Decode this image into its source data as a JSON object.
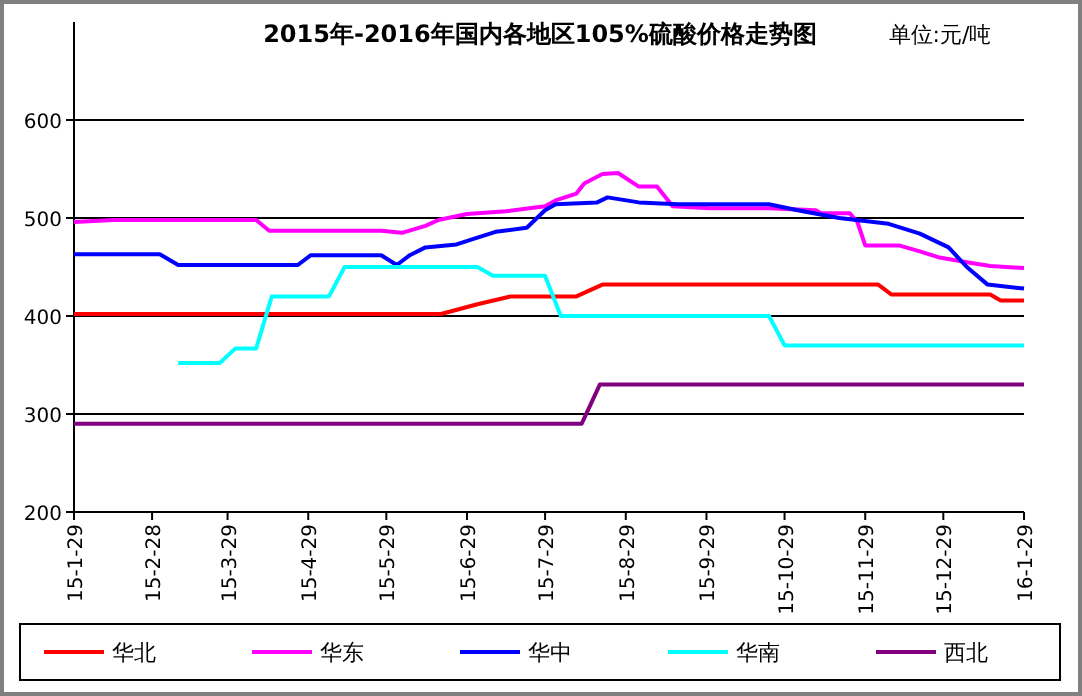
{
  "chart_data": {
    "type": "line",
    "title": "2015年-2016年国内各地区105%硫酸价格走势图",
    "annotations": [
      "单位:元/吨"
    ],
    "xlim": [
      "2015-01-29",
      "2016-01-29"
    ],
    "xticks": [
      {
        "value": "2015-01-29",
        "label": "15-1-29"
      },
      {
        "value": "2015-02-28",
        "label": "15-2-28"
      },
      {
        "value": "2015-03-29",
        "label": "15-3-29"
      },
      {
        "value": "2015-04-29",
        "label": "15-4-29"
      },
      {
        "value": "2015-05-29",
        "label": "15-5-29"
      },
      {
        "value": "2015-06-29",
        "label": "15-6-29"
      },
      {
        "value": "2015-07-29",
        "label": "15-7-29"
      },
      {
        "value": "2015-08-29",
        "label": "15-8-29"
      },
      {
        "value": "2015-09-29",
        "label": "15-9-29"
      },
      {
        "value": "2015-10-29",
        "label": "15-10-29"
      },
      {
        "value": "2015-11-29",
        "label": "15-11-29"
      },
      {
        "value": "2015-12-29",
        "label": "15-12-29"
      },
      {
        "value": "2016-01-29",
        "label": "16-1-29"
      }
    ],
    "ylim": [
      200,
      700
    ],
    "yticks": [
      200,
      300,
      400,
      500,
      600
    ],
    "grid": "y",
    "legend": "bottom",
    "series": [
      {
        "name": "华北",
        "color": "#ff0000",
        "x": [
          "2015-01-29",
          "2015-06-19",
          "2015-07-03",
          "2015-07-16",
          "2015-08-10",
          "2015-08-20",
          "2015-12-04",
          "2015-12-09",
          "2016-01-16",
          "2016-01-20",
          "2016-01-29"
        ],
        "values": [
          402,
          402,
          412,
          420,
          420,
          432,
          432,
          422,
          422,
          416,
          416
        ]
      },
      {
        "name": "华东",
        "color": "#ff00ff",
        "x": [
          "2015-01-29",
          "2015-02-13",
          "2015-04-09",
          "2015-04-14",
          "2015-05-27",
          "2015-06-04",
          "2015-06-13",
          "2015-06-18",
          "2015-06-29",
          "2015-07-14",
          "2015-07-29",
          "2015-08-02",
          "2015-08-10",
          "2015-08-13",
          "2015-08-20",
          "2015-08-26",
          "2015-09-03",
          "2015-09-10",
          "2015-09-16",
          "2015-09-30",
          "2015-10-23",
          "2015-11-10",
          "2015-11-12",
          "2015-11-23",
          "2015-11-26",
          "2015-11-29",
          "2015-12-12",
          "2015-12-20",
          "2015-12-27",
          "2016-01-07",
          "2016-01-16",
          "2016-01-29"
        ],
        "values": [
          496,
          498,
          498,
          487,
          487,
          485,
          492,
          498,
          504,
          507,
          512,
          518,
          525,
          535,
          545,
          546,
          532,
          532,
          512,
          510,
          510,
          508,
          505,
          505,
          496,
          472,
          472,
          466,
          460,
          455,
          451,
          449
        ]
      },
      {
        "name": "华中",
        "color": "#0000ff",
        "x": [
          "2015-01-29",
          "2015-03-03",
          "2015-03-10",
          "2015-04-25",
          "2015-04-30",
          "2015-05-27",
          "2015-06-02",
          "2015-06-07",
          "2015-06-13",
          "2015-06-25",
          "2015-07-03",
          "2015-07-10",
          "2015-07-22",
          "2015-07-29",
          "2015-08-02",
          "2015-08-18",
          "2015-08-22",
          "2015-09-03",
          "2015-09-18",
          "2015-10-23",
          "2015-11-03",
          "2015-11-19",
          "2015-12-08",
          "2015-12-20",
          "2015-12-31",
          "2016-01-07",
          "2016-01-15",
          "2016-01-29"
        ],
        "values": [
          463,
          463,
          452,
          452,
          462,
          462,
          452,
          462,
          470,
          473,
          480,
          486,
          490,
          508,
          514,
          516,
          521,
          516,
          514,
          514,
          508,
          500,
          494,
          484,
          470,
          450,
          432,
          428
        ]
      },
      {
        "name": "华南",
        "color": "#00ffff",
        "x": [
          "2015-03-10",
          "2015-03-26",
          "2015-04-01",
          "2015-04-09",
          "2015-04-15",
          "2015-05-07",
          "2015-05-13",
          "2015-07-03",
          "2015-07-09",
          "2015-07-29",
          "2015-08-04",
          "2015-10-23",
          "2015-10-29",
          "2016-01-29"
        ],
        "values": [
          352,
          352,
          367,
          367,
          420,
          420,
          450,
          450,
          441,
          441,
          400,
          400,
          370,
          370
        ]
      },
      {
        "name": "西北",
        "color": "#800080",
        "x": [
          "2015-01-29",
          "2015-08-12",
          "2015-08-19",
          "2016-01-29"
        ],
        "values": [
          290,
          290,
          330,
          330
        ]
      }
    ]
  }
}
